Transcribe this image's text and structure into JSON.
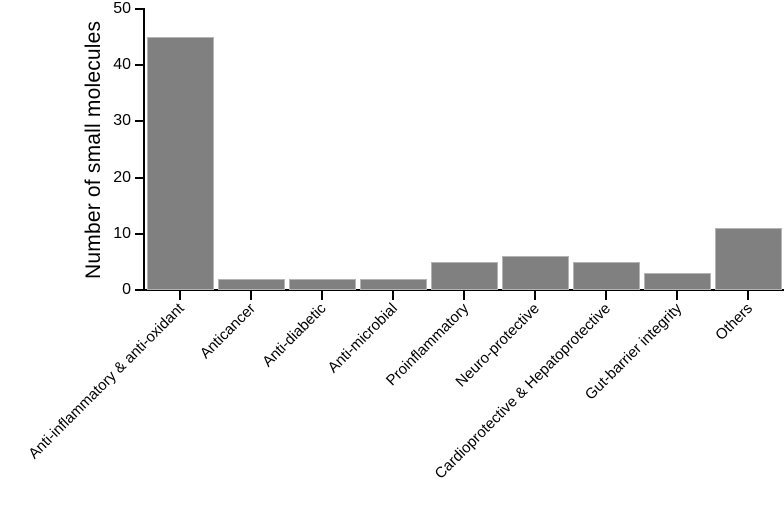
{
  "chart_data": {
    "type": "bar",
    "title": "",
    "xlabel": "",
    "ylabel": "Number of small molecules",
    "categories": [
      "Anti-inflammatory & anti-oxidant",
      "Anticancer",
      "Anti-diabetic",
      "Anti-microbial",
      "Proinflammatory",
      "Neuro-protective",
      "Cardioprotective & Hepatoprotective",
      "Gut-barrier integrity",
      "Others"
    ],
    "values": [
      45,
      2,
      2,
      2,
      5,
      6,
      5,
      3,
      11
    ],
    "ylim": [
      0,
      50
    ],
    "yticks": [
      0,
      10,
      20,
      30,
      40,
      50
    ],
    "grid": false,
    "legend": "none",
    "bar_fill_color": "#808080",
    "bar_border_color": "#b4b4b4",
    "axis_color": "#000000",
    "text_color": "#000000",
    "background_color": "#ffffff",
    "x_label_rotation_deg": 45
  }
}
